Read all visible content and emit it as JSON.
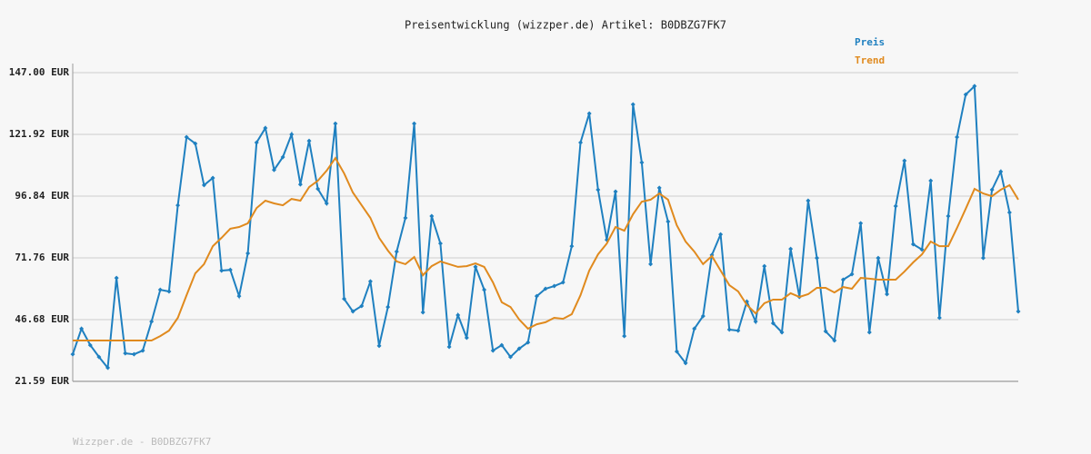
{
  "chart_data": {
    "type": "line",
    "title": "Preisentwicklung (wizzper.de) Artikel: B0DBZG7FK7",
    "footer": "Wizzper.de - B0DBZG7FK7",
    "ylim": [
      21.59,
      147.0
    ],
    "yticks": [
      {
        "value": 21.59,
        "label": "21.59 EUR"
      },
      {
        "value": 46.68,
        "label": "46.68 EUR"
      },
      {
        "value": 71.76,
        "label": "71.76 EUR"
      },
      {
        "value": 96.84,
        "label": "96.84 EUR"
      },
      {
        "value": 121.92,
        "label": "121.92 EUR"
      },
      {
        "value": 147.0,
        "label": "147.00 EUR"
      }
    ],
    "grid": true,
    "legend": "top-right",
    "series": [
      {
        "name": "Preis",
        "color": "#1f80c0",
        "markers": true,
        "values": [
          32.6,
          43.0,
          36.3,
          31.5,
          27.1,
          63.6,
          33.0,
          32.6,
          34.1,
          45.9,
          58.8,
          58.1,
          93.1,
          120.8,
          118.2,
          101.3,
          104.2,
          66.6,
          66.9,
          56.2,
          73.6,
          118.6,
          124.5,
          107.5,
          112.7,
          121.9,
          101.6,
          119.3,
          99.8,
          93.9,
          126.3,
          55.1,
          50.0,
          52.2,
          62.2,
          36.0,
          51.8,
          74.3,
          88.0,
          126.3,
          49.6,
          88.7,
          77.6,
          35.6,
          48.5,
          39.3,
          68.1,
          58.8,
          34.1,
          36.3,
          31.5,
          34.9,
          37.4,
          56.2,
          59.2,
          60.3,
          61.8,
          76.5,
          118.6,
          130.4,
          99.4,
          79.1,
          98.7,
          40.0,
          134.1,
          110.5,
          69.2,
          100.2,
          86.5,
          33.7,
          29.0,
          43.0,
          48.1,
          72.9,
          81.3,
          42.6,
          42.2,
          54.0,
          45.9,
          68.4,
          45.2,
          41.5,
          75.4,
          55.9,
          95.0,
          71.7,
          41.9,
          38.2,
          62.9,
          65.1,
          85.8,
          41.5,
          71.7,
          57.0,
          92.8,
          111.2,
          77.3,
          75.1,
          103.1,
          47.4,
          88.7,
          120.8,
          138.1,
          141.5,
          71.7,
          99.4,
          106.8,
          90.2,
          50.0
        ]
      },
      {
        "name": "Trend",
        "color": "#e08a1e",
        "markers": false,
        "values": [
          38.2,
          38.2,
          38.2,
          38.2,
          38.2,
          38.2,
          38.2,
          38.2,
          38.2,
          38.2,
          40.0,
          42.2,
          47.4,
          56.6,
          65.5,
          69.2,
          76.5,
          79.9,
          83.6,
          84.3,
          85.8,
          92.0,
          95.0,
          93.9,
          93.1,
          95.7,
          95.0,
          100.5,
          103.1,
          107.2,
          112.3,
          106.1,
          98.3,
          93.1,
          88.0,
          79.9,
          74.7,
          70.3,
          69.2,
          72.1,
          64.7,
          68.4,
          70.3,
          69.2,
          68.1,
          68.4,
          69.5,
          68.1,
          61.8,
          53.7,
          51.8,
          46.7,
          43.0,
          44.8,
          45.6,
          47.4,
          47.0,
          48.9,
          56.6,
          66.6,
          73.2,
          77.6,
          84.3,
          82.8,
          89.5,
          94.6,
          95.4,
          97.9,
          95.4,
          85.0,
          78.4,
          74.3,
          69.2,
          72.5,
          66.6,
          60.7,
          58.1,
          52.6,
          49.2,
          53.3,
          54.8,
          54.8,
          57.4,
          55.9,
          57.0,
          59.6,
          59.6,
          57.7,
          59.9,
          59.2,
          63.6,
          63.3,
          62.9,
          62.9,
          62.9,
          66.2,
          69.9,
          73.2,
          78.4,
          76.5,
          76.5,
          83.9,
          91.7,
          99.8,
          97.9,
          96.8,
          99.4,
          101.3,
          95.4
        ]
      }
    ]
  }
}
